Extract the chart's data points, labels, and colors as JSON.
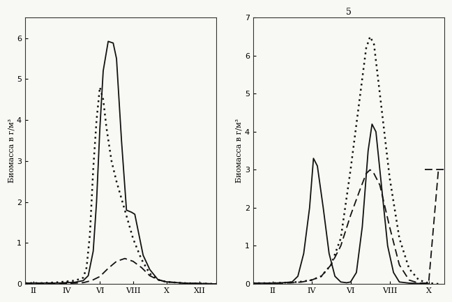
{
  "left_chart": {
    "title": "",
    "ylabel": "Биомасса в г/м³",
    "xticks": [
      "II",
      "IV",
      "VI",
      "VIII",
      "X",
      "XII"
    ],
    "xtick_pos": [
      2,
      4,
      6,
      8,
      10,
      12
    ],
    "ylim": [
      0,
      6.5
    ],
    "xlim": [
      1.5,
      13
    ],
    "solid_line": {
      "x": [
        1.5,
        2,
        2.5,
        3,
        3.5,
        4,
        4.5,
        5,
        5.3,
        5.6,
        5.8,
        6.0,
        6.2,
        6.5,
        6.8,
        7.0,
        7.3,
        7.6,
        7.9,
        8.1,
        8.3,
        8.6,
        9.0,
        9.5,
        10.0,
        11.0,
        12.0,
        13.0
      ],
      "y": [
        0.02,
        0.02,
        0.02,
        0.02,
        0.02,
        0.03,
        0.04,
        0.08,
        0.2,
        0.8,
        2.0,
        3.8,
        5.2,
        5.92,
        5.88,
        5.5,
        3.5,
        1.8,
        1.75,
        1.7,
        1.3,
        0.7,
        0.35,
        0.1,
        0.05,
        0.02,
        0.01,
        0.0
      ]
    },
    "dotted_line": {
      "x": [
        1.5,
        2,
        2.5,
        3,
        3.5,
        4,
        4.5,
        5,
        5.2,
        5.4,
        5.6,
        5.8,
        6.0,
        6.2,
        6.4,
        6.7,
        7.0,
        7.5,
        8.0,
        8.5,
        9.0,
        9.5,
        10.0,
        11.0,
        12.0,
        13.0
      ],
      "y": [
        0.02,
        0.02,
        0.02,
        0.03,
        0.04,
        0.06,
        0.08,
        0.15,
        0.4,
        1.2,
        2.8,
        4.0,
        4.8,
        4.5,
        3.8,
        3.0,
        2.5,
        1.8,
        1.1,
        0.6,
        0.25,
        0.1,
        0.05,
        0.02,
        0.01,
        0.0
      ]
    },
    "dashed_line": {
      "x": [
        1.5,
        2,
        3,
        4,
        5,
        5.5,
        6.0,
        6.5,
        7.0,
        7.5,
        8.0,
        8.5,
        9.0,
        9.5,
        10.0,
        11.0,
        12.0,
        13.0
      ],
      "y": [
        0.01,
        0.01,
        0.01,
        0.01,
        0.03,
        0.08,
        0.18,
        0.38,
        0.55,
        0.62,
        0.55,
        0.4,
        0.2,
        0.1,
        0.05,
        0.02,
        0.01,
        0.0
      ]
    }
  },
  "right_chart": {
    "title": "5",
    "ylabel": "Биомасса в г/м³",
    "xticks": [
      "II",
      "IV",
      "VI",
      "VIII",
      "X"
    ],
    "xtick_pos": [
      2,
      4,
      6,
      8,
      10
    ],
    "ylim": [
      0,
      7.0
    ],
    "xlim": [
      1,
      10.8
    ],
    "solid_line": {
      "x": [
        1,
        1.5,
        2,
        2.5,
        3,
        3.3,
        3.6,
        3.9,
        4.1,
        4.3,
        4.6,
        4.9,
        5.2,
        5.5,
        5.8,
        6.0,
        6.3,
        6.6,
        6.9,
        7.1,
        7.3,
        7.6,
        7.9,
        8.2,
        8.5,
        9.0,
        9.5,
        10.0
      ],
      "y": [
        0.02,
        0.02,
        0.02,
        0.03,
        0.05,
        0.2,
        0.8,
        2.0,
        3.3,
        3.1,
        2.0,
        0.8,
        0.2,
        0.05,
        0.03,
        0.05,
        0.3,
        1.5,
        3.5,
        4.2,
        4.0,
        2.5,
        1.0,
        0.3,
        0.05,
        0.02,
        0.01,
        0.0
      ]
    },
    "dotted_line": {
      "x": [
        1,
        1.5,
        2,
        2.5,
        3,
        3.5,
        4.0,
        4.5,
        5.0,
        5.5,
        6.0,
        6.5,
        6.8,
        7.0,
        7.2,
        7.5,
        8.0,
        8.5,
        9.0,
        9.5,
        10.0,
        10.5
      ],
      "y": [
        0.02,
        0.02,
        0.02,
        0.03,
        0.04,
        0.06,
        0.1,
        0.2,
        0.5,
        1.2,
        3.0,
        5.0,
        6.2,
        6.5,
        6.3,
        5.0,
        2.8,
        1.2,
        0.4,
        0.1,
        0.02,
        0.0
      ]
    },
    "dashed_line": {
      "x": [
        1,
        1.5,
        2,
        2.5,
        3,
        3.5,
        4.0,
        4.5,
        5.0,
        5.5,
        6.0,
        6.5,
        6.8,
        7.0,
        7.2,
        7.5,
        8.0,
        8.5,
        9.0,
        9.5,
        10.0,
        10.5
      ],
      "y": [
        0.02,
        0.02,
        0.02,
        0.02,
        0.03,
        0.05,
        0.1,
        0.2,
        0.5,
        1.0,
        1.8,
        2.5,
        2.9,
        3.0,
        2.9,
        2.6,
        1.5,
        0.5,
        0.1,
        0.02,
        0.02,
        3.0
      ]
    },
    "dashed_line2": {
      "x": [
        9.8,
        10.8
      ],
      "y": [
        3.0,
        3.0
      ]
    }
  },
  "line_color": "#111111",
  "bg_color": "#f8f8f4"
}
